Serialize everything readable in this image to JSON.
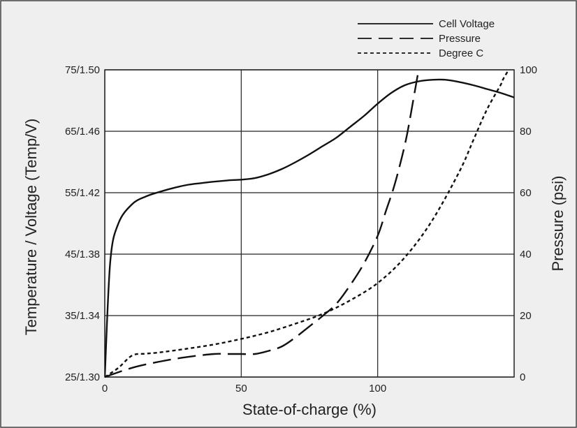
{
  "chart_data": {
    "type": "line",
    "title": "",
    "xlabel": "State-of-charge (%)",
    "ylabel_left": "Temperature / Voltage (Temp/V)",
    "ylabel_right": "Pressure (psi)",
    "x_ticks": [
      "0",
      "50",
      "100"
    ],
    "x_range": [
      0,
      150
    ],
    "y_left_ticks": [
      "25/1.30",
      "35/1.34",
      "45/1.38",
      "55/1.42",
      "65/1.46",
      "75/1.50"
    ],
    "y_left_temp_range": [
      25,
      75
    ],
    "y_left_voltage_range": [
      1.3,
      1.5
    ],
    "y_right_ticks": [
      "0",
      "20",
      "40",
      "60",
      "80",
      "100"
    ],
    "y_right_range": [
      0,
      100
    ],
    "grid": true,
    "legend_position": "top-right",
    "series": [
      {
        "name": "Cell Voltage",
        "style": "solid",
        "axis": "left-voltage",
        "x": [
          0,
          2,
          5,
          10,
          15,
          20,
          25,
          30,
          35,
          40,
          45,
          50,
          55,
          60,
          65,
          70,
          75,
          80,
          85,
          90,
          95,
          100,
          105,
          110,
          115,
          120,
          125,
          130,
          135,
          140,
          145,
          150
        ],
        "y": [
          1.3,
          1.375,
          1.4,
          1.4125,
          1.4175,
          1.4205,
          1.423,
          1.425,
          1.4262,
          1.4272,
          1.428,
          1.4285,
          1.4295,
          1.432,
          1.4355,
          1.44,
          1.445,
          1.4505,
          1.456,
          1.463,
          1.47,
          1.478,
          1.485,
          1.49,
          1.4925,
          1.4935,
          1.4935,
          1.492,
          1.49,
          1.4875,
          1.485,
          1.482
        ]
      },
      {
        "name": "Pressure",
        "style": "dashed",
        "axis": "right",
        "x": [
          0,
          10,
          20,
          30,
          40,
          45,
          50,
          55,
          60,
          65,
          70,
          75,
          80,
          85,
          90,
          95,
          100,
          103,
          106,
          109,
          111,
          113,
          114,
          115
        ],
        "y": [
          0,
          3,
          5,
          6.5,
          7.5,
          7.5,
          7.5,
          7.5,
          8.5,
          10,
          13,
          16.5,
          20,
          24,
          30,
          37,
          46,
          54,
          62,
          72,
          80,
          90,
          95,
          100
        ]
      },
      {
        "name": "Degree C",
        "style": "dotted",
        "axis": "left-temperature",
        "x": [
          0,
          5,
          10,
          15,
          20,
          30,
          40,
          50,
          60,
          70,
          80,
          90,
          100,
          110,
          120,
          130,
          135,
          140,
          145,
          146,
          148
        ],
        "y": [
          25,
          26.5,
          28.5,
          28.8,
          29,
          29.6,
          30.3,
          31.2,
          32.3,
          33.7,
          35.3,
          37.5,
          40.3,
          44.5,
          50.5,
          58.5,
          63.5,
          68.5,
          72.5,
          73.5,
          75
        ]
      }
    ]
  }
}
